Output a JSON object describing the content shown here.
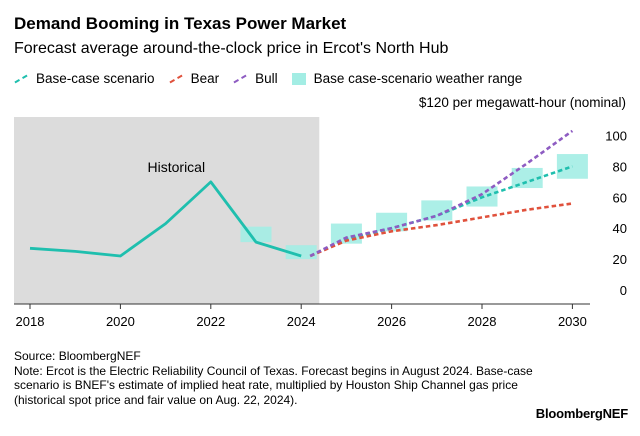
{
  "chart_data": {
    "type": "line",
    "title": "Demand Booming in Texas Power Market",
    "subtitle": "Forecast average around-the-clock price in Ercot's North Hub",
    "ylabel": "$120 per megawatt-hour (nominal)",
    "xlim": [
      2018,
      2031
    ],
    "ylim": [
      0,
      120
    ],
    "x_ticks": [
      "2018",
      "2020",
      "2022",
      "2024",
      "2026",
      "2028",
      "2030"
    ],
    "y_ticks": [
      "0",
      "20",
      "40",
      "60",
      "80",
      "100"
    ],
    "historical_band": {
      "x_start": 2017.7,
      "x_end": 2024.4,
      "label": "Historical"
    },
    "series": [
      {
        "name": "Historical",
        "style": "solid",
        "color": "#1fbfae",
        "x": [
          2018,
          2019,
          2020,
          2021,
          2022,
          2023,
          2024
        ],
        "y": [
          27,
          25,
          22,
          43,
          70,
          31,
          22
        ]
      },
      {
        "name": "Base-case scenario",
        "style": "dashed",
        "color": "#1fbfae",
        "x": [
          2024.2,
          2025,
          2026,
          2027,
          2028,
          2029,
          2030
        ],
        "y": [
          22,
          33,
          40,
          48,
          60,
          70,
          80
        ]
      },
      {
        "name": "Bear",
        "style": "dashed",
        "color": "#e0513c",
        "x": [
          2024.2,
          2025,
          2026,
          2027,
          2028,
          2029,
          2030
        ],
        "y": [
          22,
          32,
          38,
          42,
          47,
          52,
          56
        ]
      },
      {
        "name": "Bull",
        "style": "dashed",
        "color": "#8e5cc2",
        "x": [
          2024.2,
          2025,
          2026,
          2027,
          2028,
          2029,
          2030
        ],
        "y": [
          22,
          34,
          40,
          48,
          62,
          82,
          103
        ]
      }
    ],
    "weather_range": {
      "name": "Base case-scenario weather range",
      "color": "#a3ede4",
      "boxes": [
        {
          "x": 2023,
          "low": 31,
          "high": 41
        },
        {
          "x": 2024,
          "low": 20,
          "high": 29
        },
        {
          "x": 2025,
          "low": 30,
          "high": 43
        },
        {
          "x": 2026,
          "low": 38,
          "high": 50
        },
        {
          "x": 2027,
          "low": 45,
          "high": 58
        },
        {
          "x": 2028,
          "low": 54,
          "high": 67
        },
        {
          "x": 2029,
          "low": 66,
          "high": 79
        },
        {
          "x": 2030,
          "low": 72,
          "high": 88
        }
      ]
    },
    "legend": [
      {
        "label": "Base-case scenario",
        "color": "#1fbfae",
        "kind": "line"
      },
      {
        "label": "Bear",
        "color": "#e0513c",
        "kind": "line"
      },
      {
        "label": "Bull",
        "color": "#8e5cc2",
        "kind": "line"
      },
      {
        "label": "Base case-scenario weather range",
        "color": "#a3ede4",
        "kind": "box"
      }
    ],
    "legend_placement": "top-left",
    "grid": false
  },
  "notes": {
    "source": "Source: BloombergNEF",
    "note": "Note: Ercot is the Electric Reliability Council of Texas. Forecast begins in August 2024. Base-case scenario is BNEF's estimate of implied heat rate, multiplied by Houston Ship Channel gas price (historical spot price and fair value on Aug. 22, 2024)."
  },
  "brand": "BloombergNEF"
}
